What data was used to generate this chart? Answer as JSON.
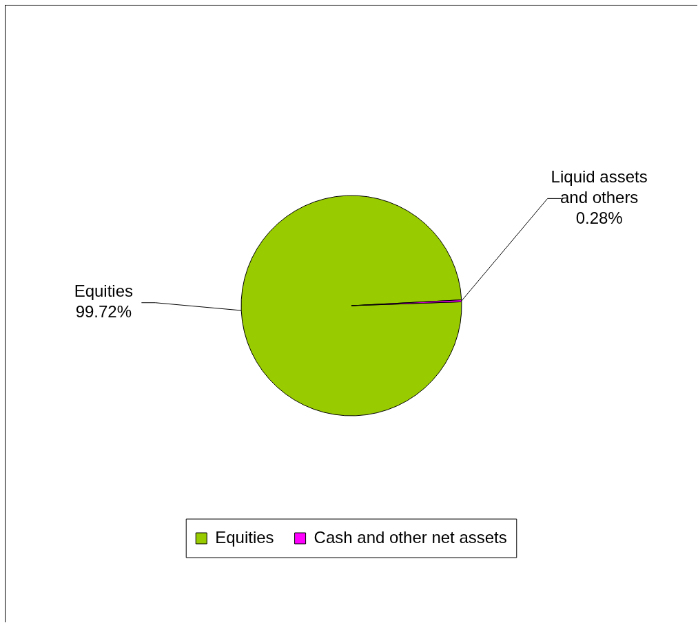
{
  "chart_data": {
    "type": "pie",
    "categories": [
      "Equities",
      "Cash and other net assets"
    ],
    "values": [
      99.72,
      0.28
    ],
    "colors": [
      "#99cc00",
      "#ff00ff"
    ],
    "value_labels": [
      "Equities\n99.72%",
      "Liquid assets\nand others\n0.28%"
    ],
    "legend": "bottom"
  }
}
